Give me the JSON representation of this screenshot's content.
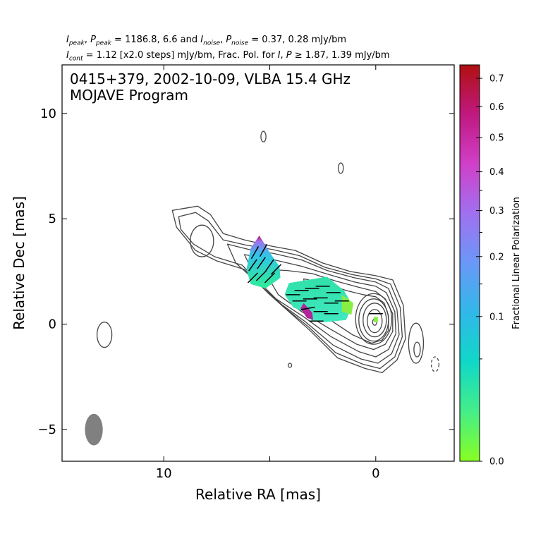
{
  "header": {
    "line1": {
      "i_sym": "I",
      "i_sub": "peak",
      "p_sym": "P",
      "p_sub": "peak",
      "peak_values": "1186.8, 6.6",
      "mid": "and",
      "i2_sym": "I",
      "i2_sub": "noise",
      "p2_sym": "P",
      "p2_sub": "noise",
      "noise_values": "0.37, 0.28 mJy/bm"
    },
    "line2": {
      "i_sym": "I",
      "i_sub": "cont",
      "cont_text": "1.12 [x2.0 steps] mJy/bm, Frac. Pol. for",
      "i_sym2": "I",
      "p_sym2": "P",
      "thresh_text": "1.87, 1.39 mJy/bm"
    }
  },
  "chart_data": {
    "type": "contour",
    "title_line1": "0415+379, 2002-10-09, VLBA 15.4 GHz",
    "title_line2": "MOJAVE Program",
    "xlabel": "Relative RA [mas]",
    "ylabel": "Relative Dec [mas]",
    "xlim": [
      14.8,
      -3.7
    ],
    "ylim": [
      -6.5,
      12.3
    ],
    "x_ticks": [
      10,
      5,
      0
    ],
    "x_tick_labels": [
      "10",
      "",
      "0"
    ],
    "y_ticks": [
      -5,
      0,
      5,
      10
    ],
    "y_tick_labels": [
      "−5",
      "0",
      "5",
      "10"
    ],
    "peak_position": [
      0.0,
      0.1
    ],
    "contour_color": "#444444",
    "core_contours": [
      {
        "x": 0.05,
        "y": 0.1,
        "a": 0.1,
        "b": 0.15,
        "rot": 0
      },
      {
        "x": 0.05,
        "y": 0.15,
        "a": 0.35,
        "b": 0.55,
        "rot": 0
      },
      {
        "x": 0.05,
        "y": 0.2,
        "a": 0.55,
        "b": 0.8,
        "rot": 0
      },
      {
        "x": 0.1,
        "y": 0.2,
        "a": 0.7,
        "b": 1.0,
        "rot": 0
      },
      {
        "x": 0.1,
        "y": 0.25,
        "a": 0.85,
        "b": 1.2,
        "rot": 0
      }
    ],
    "jet_contours": [
      [
        [
          9.6,
          5.4
        ],
        [
          8.4,
          5.6
        ],
        [
          7.8,
          5.2
        ],
        [
          7.2,
          4.3
        ],
        [
          6.2,
          4.0
        ],
        [
          4.9,
          3.7
        ],
        [
          3.8,
          3.5
        ],
        [
          2.5,
          2.9
        ],
        [
          1.2,
          2.5
        ],
        [
          0,
          2.3
        ],
        [
          -0.8,
          2.1
        ],
        [
          -1.3,
          0.9
        ],
        [
          -1.4,
          -0.7
        ],
        [
          -1.0,
          -1.7
        ],
        [
          -0.3,
          -2.3
        ],
        [
          0.5,
          -2.1
        ],
        [
          1.8,
          -1.6
        ],
        [
          3.1,
          -0.3
        ],
        [
          4.0,
          0.5
        ],
        [
          5.0,
          1.4
        ],
        [
          6.2,
          2.6
        ],
        [
          7.5,
          3.0
        ],
        [
          8.5,
          3.5
        ],
        [
          9.4,
          4.6
        ],
        [
          9.6,
          5.4
        ]
      ],
      [
        [
          9.3,
          5.1
        ],
        [
          8.5,
          5.3
        ],
        [
          7.9,
          4.9
        ],
        [
          7.2,
          4.0
        ],
        [
          6.1,
          3.75
        ],
        [
          4.9,
          3.55
        ],
        [
          3.6,
          3.25
        ],
        [
          2.4,
          2.7
        ],
        [
          1.1,
          2.35
        ],
        [
          0,
          2.15
        ],
        [
          -0.7,
          1.9
        ],
        [
          -1.15,
          0.8
        ],
        [
          -1.25,
          -0.6
        ],
        [
          -0.9,
          -1.55
        ],
        [
          -0.2,
          -2.1
        ],
        [
          0.6,
          -1.9
        ],
        [
          1.9,
          -1.35
        ],
        [
          3.2,
          -0.1
        ],
        [
          4.2,
          0.7
        ],
        [
          5.2,
          1.6
        ],
        [
          6.3,
          2.8
        ],
        [
          7.6,
          3.2
        ],
        [
          8.6,
          3.8
        ],
        [
          9.2,
          4.5
        ],
        [
          9.3,
          5.1
        ]
      ],
      [
        [
          7.0,
          3.8
        ],
        [
          6.0,
          3.55
        ],
        [
          4.8,
          3.35
        ],
        [
          3.5,
          3.05
        ],
        [
          2.3,
          2.55
        ],
        [
          1.0,
          2.2
        ],
        [
          0,
          2.0
        ],
        [
          -0.6,
          1.7
        ],
        [
          -1.0,
          0.7
        ],
        [
          -1.1,
          -0.5
        ],
        [
          -0.75,
          -1.4
        ],
        [
          -0.1,
          -1.85
        ],
        [
          0.7,
          -1.65
        ],
        [
          2.0,
          -1.0
        ],
        [
          3.3,
          0.1
        ],
        [
          4.4,
          0.9
        ],
        [
          5.5,
          1.9
        ],
        [
          6.6,
          2.9
        ],
        [
          7.0,
          3.8
        ]
      ],
      [
        [
          6.2,
          3.3
        ],
        [
          5.0,
          3.1
        ],
        [
          3.5,
          2.75
        ],
        [
          2.2,
          2.35
        ],
        [
          1.0,
          2.0
        ],
        [
          0,
          1.8
        ],
        [
          -0.5,
          1.5
        ],
        [
          -0.9,
          0.6
        ],
        [
          -0.95,
          -0.45
        ],
        [
          -0.6,
          -1.2
        ],
        [
          0.0,
          -1.55
        ],
        [
          0.8,
          -1.3
        ],
        [
          2.1,
          -0.6
        ],
        [
          3.4,
          0.35
        ],
        [
          4.7,
          1.2
        ],
        [
          5.6,
          2.1
        ],
        [
          6.2,
          3.3
        ]
      ],
      [
        [
          5.3,
          2.6
        ],
        [
          4.2,
          2.55
        ],
        [
          3.0,
          2.4
        ],
        [
          1.9,
          2.05
        ],
        [
          0.8,
          1.75
        ],
        [
          0,
          1.55
        ],
        [
          -0.45,
          1.2
        ],
        [
          -0.8,
          0.5
        ],
        [
          -0.8,
          -0.35
        ],
        [
          -0.45,
          -0.95
        ],
        [
          0.1,
          -1.2
        ],
        [
          0.9,
          -0.95
        ],
        [
          2.2,
          -0.2
        ],
        [
          3.5,
          0.6
        ],
        [
          4.6,
          1.4
        ],
        [
          5.3,
          2.6
        ]
      ],
      [
        [
          3.4,
          2.15
        ],
        [
          2.4,
          1.95
        ],
        [
          1.4,
          1.6
        ],
        [
          0.6,
          1.4
        ],
        [
          0,
          1.3
        ],
        [
          -0.4,
          1.0
        ],
        [
          -0.6,
          0.4
        ],
        [
          -0.6,
          -0.3
        ],
        [
          -0.3,
          -0.75
        ],
        [
          0.2,
          -0.9
        ],
        [
          1.1,
          -0.5
        ],
        [
          2.3,
          0.3
        ],
        [
          3.2,
          1.0
        ],
        [
          3.4,
          2.15
        ]
      ]
    ],
    "islands": [
      {
        "x": 8.2,
        "y": 3.95,
        "a": 0.55,
        "b": 0.75,
        "rot": -30,
        "dashed": false
      },
      {
        "x": 12.8,
        "y": -0.5,
        "a": 0.35,
        "b": 0.6,
        "rot": 0,
        "dashed": false
      },
      {
        "x": 5.3,
        "y": 8.9,
        "a": 0.12,
        "b": 0.25,
        "rot": 0,
        "dashed": false
      },
      {
        "x": 1.65,
        "y": 7.4,
        "a": 0.12,
        "b": 0.25,
        "rot": 0,
        "dashed": false
      },
      {
        "x": -1.9,
        "y": -0.9,
        "a": 0.35,
        "b": 0.95,
        "rot": 0,
        "dashed": false
      },
      {
        "x": -1.95,
        "y": -1.2,
        "a": 0.15,
        "b": 0.35,
        "rot": 0,
        "dashed": false
      },
      {
        "x": -2.8,
        "y": -1.9,
        "a": 0.18,
        "b": 0.35,
        "rot": 0,
        "dashed": true
      },
      {
        "x": 4.05,
        "y": -1.95,
        "a": 0.08,
        "b": 0.1,
        "rot": 0,
        "dashed": false
      }
    ],
    "beam": {
      "x": 13.3,
      "y": -5.0,
      "a": 0.42,
      "b": 0.75,
      "rot": 0,
      "color": "#808080"
    },
    "polarization_regions": [
      {
        "outline": [
          [
            5.5,
            4.2
          ],
          [
            5.9,
            3.6
          ],
          [
            6.1,
            2.6
          ],
          [
            5.9,
            1.9
          ],
          [
            5.2,
            1.7
          ],
          [
            4.5,
            2.2
          ],
          [
            4.55,
            2.75
          ],
          [
            5.0,
            3.4
          ],
          [
            5.3,
            3.9
          ],
          [
            5.5,
            4.2
          ]
        ],
        "color_stops": [
          [
            0.0,
            "#b01060"
          ],
          [
            0.12,
            "#a070f0"
          ],
          [
            0.4,
            "#30c4e8"
          ],
          [
            1.0,
            "#30e8a0"
          ]
        ],
        "stops_top_y": 4.2,
        "stops_bottom_y": 1.9,
        "evpa_vectors": [
          {
            "x": 5.7,
            "y": 3.4,
            "angle_deg": 60
          },
          {
            "x": 5.3,
            "y": 3.5,
            "angle_deg": 60
          },
          {
            "x": 5.8,
            "y": 2.8,
            "angle_deg": 55
          },
          {
            "x": 5.4,
            "y": 2.9,
            "angle_deg": 55
          },
          {
            "x": 5.0,
            "y": 2.8,
            "angle_deg": 55
          },
          {
            "x": 5.8,
            "y": 2.2,
            "angle_deg": 45
          },
          {
            "x": 5.4,
            "y": 2.3,
            "angle_deg": 45
          },
          {
            "x": 5.0,
            "y": 2.2,
            "angle_deg": 45
          },
          {
            "x": 4.7,
            "y": 2.6,
            "angle_deg": 45
          }
        ]
      },
      {
        "outline": [
          [
            4.1,
            1.95
          ],
          [
            3.2,
            2.1
          ],
          [
            2.3,
            2.25
          ],
          [
            1.5,
            1.6
          ],
          [
            1.1,
            0.9
          ],
          [
            1.4,
            0.2
          ],
          [
            2.4,
            0.1
          ],
          [
            3.0,
            0.15
          ],
          [
            3.3,
            0.55
          ],
          [
            3.9,
            0.8
          ],
          [
            4.3,
            1.4
          ],
          [
            4.1,
            1.95
          ]
        ],
        "color_stops": [
          [
            0.0,
            "#30e0a8"
          ],
          [
            1.0,
            "#40e8c0"
          ]
        ],
        "stops_top_y": 2.25,
        "stops_bottom_y": 0.1,
        "accents": [
          {
            "outline": [
              [
                3.4,
                1.0
              ],
              [
                3.0,
                0.55
              ],
              [
                2.95,
                0.2
              ],
              [
                3.25,
                0.3
              ],
              [
                3.55,
                0.75
              ]
            ],
            "color": "#b0269a"
          },
          {
            "outline": [
              [
                1.6,
                1.4
              ],
              [
                1.05,
                1.0
              ],
              [
                1.15,
                0.45
              ],
              [
                1.6,
                0.6
              ]
            ],
            "color": "#88ee44"
          }
        ],
        "evpa_vectors": [
          {
            "x": 3.9,
            "y": 1.4,
            "angle_deg": 0
          },
          {
            "x": 3.5,
            "y": 1.6,
            "angle_deg": 0
          },
          {
            "x": 3.0,
            "y": 1.7,
            "angle_deg": 0
          },
          {
            "x": 2.5,
            "y": 1.8,
            "angle_deg": 0
          },
          {
            "x": 2.0,
            "y": 1.5,
            "angle_deg": 0
          },
          {
            "x": 3.6,
            "y": 1.1,
            "angle_deg": 0
          },
          {
            "x": 3.1,
            "y": 1.2,
            "angle_deg": 0
          },
          {
            "x": 2.6,
            "y": 1.25,
            "angle_deg": 0
          },
          {
            "x": 2.1,
            "y": 1.0,
            "angle_deg": 0
          },
          {
            "x": 1.6,
            "y": 1.1,
            "angle_deg": 0
          },
          {
            "x": 3.2,
            "y": 0.75,
            "angle_deg": 10
          },
          {
            "x": 2.6,
            "y": 0.6,
            "angle_deg": 0
          },
          {
            "x": 2.1,
            "y": 0.5,
            "angle_deg": 0
          },
          {
            "x": 2.8,
            "y": 0.15,
            "angle_deg": 0
          }
        ]
      },
      {
        "outline": [
          [
            0.1,
            0.35
          ],
          [
            -0.1,
            0.35
          ],
          [
            -0.1,
            0.1
          ],
          [
            0.1,
            0.1
          ]
        ],
        "color_stops": [
          [
            0.0,
            "#88ee44"
          ],
          [
            1.0,
            "#88ee44"
          ]
        ],
        "stops_top_y": 0.35,
        "stops_bottom_y": 0.1,
        "evpa_vectors": [
          {
            "x": 0.0,
            "y": 0.5,
            "angle_deg": 0
          }
        ]
      }
    ],
    "colorbar": {
      "label": "Fractional Linear Polarization",
      "scale": "sqrt",
      "range": [
        0.0,
        0.75
      ],
      "tick_values": [
        0.0,
        0.1,
        0.2,
        0.3,
        0.4,
        0.5,
        0.6,
        0.7
      ],
      "tick_labels": [
        "0.0",
        "0.1",
        "0.2",
        "0.3",
        "0.4",
        "0.5",
        "0.6",
        "0.7"
      ],
      "minor_tick_values": [
        0.05,
        0.15,
        0.25,
        0.35
      ],
      "colormap": [
        "#88ff22",
        "#44ee88",
        "#10d8c8",
        "#30b8e8",
        "#6a98f8",
        "#a070f0",
        "#d040c8",
        "#c01880",
        "#b01010"
      ]
    }
  }
}
